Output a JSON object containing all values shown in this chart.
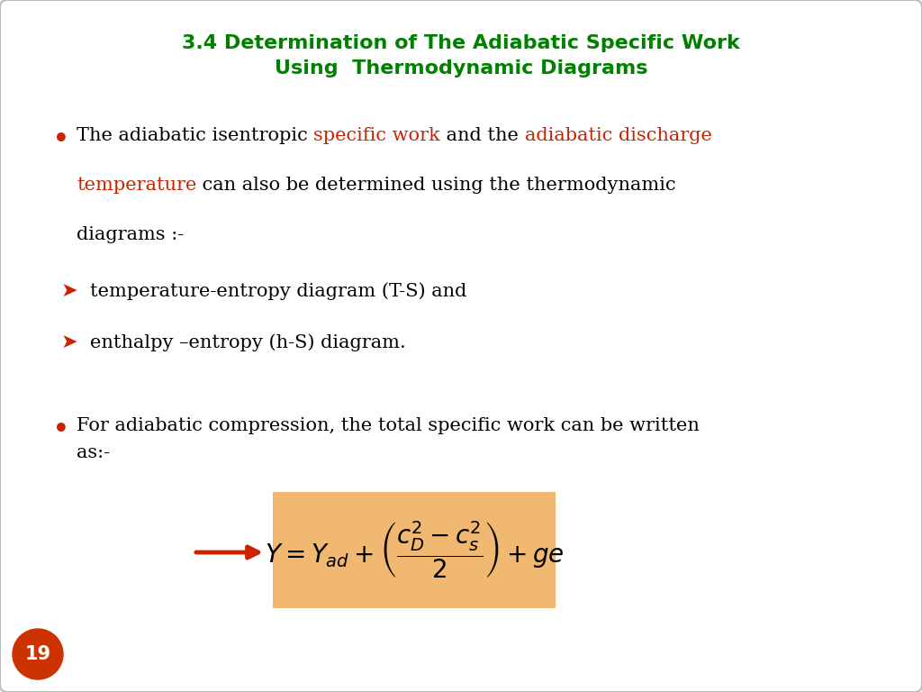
{
  "title_line1": "3.4 Determination of The Adiabatic Specific Work",
  "title_line2": "Using  Thermodynamic Diagrams",
  "title_color": "#008000",
  "title_fontsize": 16,
  "bullet_color": "#cc2200",
  "arrow_color": "#cc2200",
  "sub1": "temperature-entropy diagram (T-S) and",
  "sub2": "enthalpy –entropy (h-S) diagram.",
  "bullet2_text": "For adiabatic compression, the total specific work can be written\nas:-",
  "formula_bg": "#f0b870",
  "formula_text": "$Y = Y_{ad} + \\left(\\dfrac{c_D^2 - c_s^2}{2}\\right) + ge$",
  "page_number": "19",
  "page_bg": "#cc3300",
  "background_color": "#ffffff",
  "text_fontsize": 15,
  "sub_fontsize": 15,
  "formula_fontsize": 20
}
